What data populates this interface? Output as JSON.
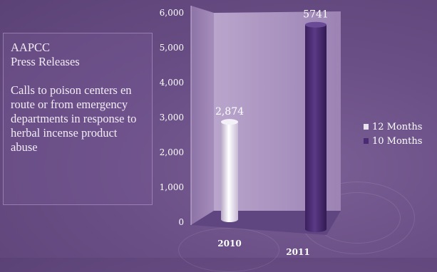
{
  "info": {
    "heading1": "AAPCC",
    "heading2": "Press Releases",
    "body": "Calls to poison centers en route or from emergency departments in response to herbal incense product abuse"
  },
  "legend": [
    {
      "label": "12 Months",
      "color": "#e8e2ee"
    },
    {
      "label": "10 Months",
      "color": "#4a2a72"
    }
  ],
  "chart_data": {
    "type": "bar",
    "categories": [
      "2010",
      "2011"
    ],
    "values": [
      2874,
      5741
    ],
    "data_labels": [
      "2,874",
      "5741"
    ],
    "ylim": [
      0,
      6000
    ],
    "yticks": [
      0,
      1000,
      2000,
      3000,
      4000,
      5000,
      6000
    ],
    "ytick_labels": [
      "0",
      "1,000",
      "2,000",
      "3,000",
      "4,000",
      "5,000",
      "6,000"
    ],
    "series": [
      {
        "name": "12 Months"
      },
      {
        "name": "10 Months"
      }
    ],
    "title": "",
    "xlabel": "",
    "ylabel": ""
  }
}
